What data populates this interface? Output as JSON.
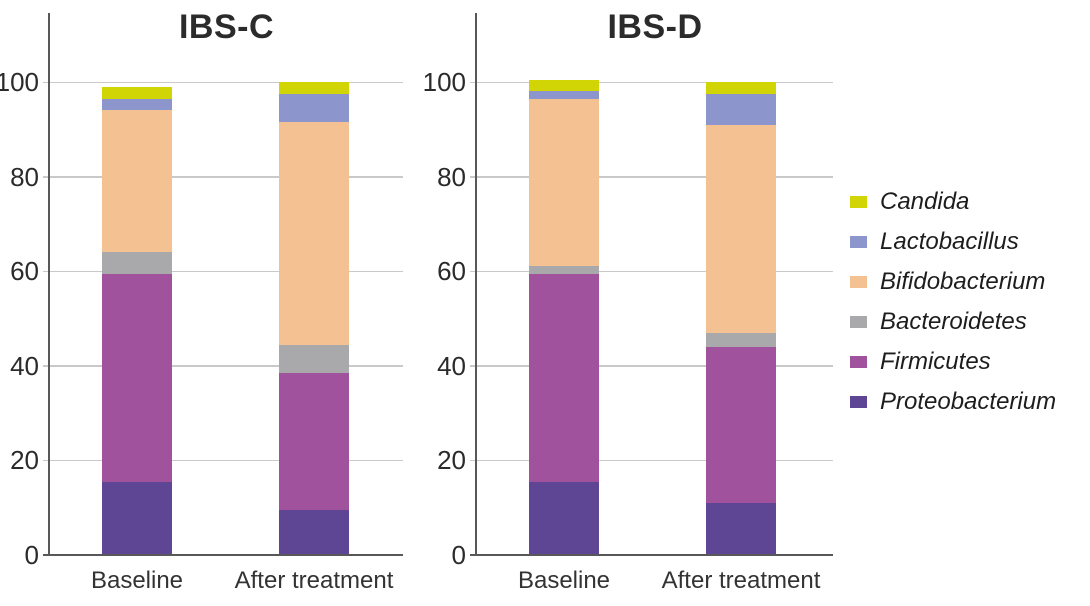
{
  "legend": {
    "position": "right",
    "items": [
      {
        "label": "Candida",
        "color": "#d1d506"
      },
      {
        "label": "Lactobacillus",
        "color": "#8d95cd"
      },
      {
        "label": "Bifidobacterium",
        "color": "#f4c292"
      },
      {
        "label": "Bacteroidetes",
        "color": "#a9a9ab"
      },
      {
        "label": "Firmicutes",
        "color": "#a0529c"
      },
      {
        "label": "Proteobacterium",
        "color": "#5e4695"
      }
    ]
  },
  "chart_data": [
    {
      "type": "bar",
      "stacked": true,
      "title": "IBS-C",
      "categories": [
        "Baseline",
        "After treatment"
      ],
      "series": [
        {
          "name": "Proteobacterium",
          "color": "#5e4695",
          "values": [
            15.5,
            9.5
          ]
        },
        {
          "name": "Firmicutes",
          "color": "#a0529c",
          "values": [
            44,
            29
          ]
        },
        {
          "name": "Bacteroidetes",
          "color": "#a9a9ab",
          "values": [
            4.5,
            6
          ]
        },
        {
          "name": "Bifidobacterium",
          "color": "#f4c292",
          "values": [
            30,
            47
          ]
        },
        {
          "name": "Lactobacillus",
          "color": "#8d95cd",
          "values": [
            2.5,
            6
          ]
        },
        {
          "name": "Candida",
          "color": "#d1d506",
          "values": [
            2.5,
            2.5
          ]
        }
      ],
      "xlabel": "",
      "ylabel": "",
      "ylim": [
        0,
        100
      ],
      "yticks": [
        0,
        20,
        40,
        60,
        80,
        100
      ],
      "grid": true,
      "legend_position": "right"
    },
    {
      "type": "bar",
      "stacked": true,
      "title": "IBS-D",
      "categories": [
        "Baseline",
        "After treatment"
      ],
      "series": [
        {
          "name": "Proteobacterium",
          "color": "#5e4695",
          "values": [
            15.5,
            11
          ]
        },
        {
          "name": "Firmicutes",
          "color": "#a0529c",
          "values": [
            44,
            33
          ]
        },
        {
          "name": "Bacteroidetes",
          "color": "#a9a9ab",
          "values": [
            1.5,
            3
          ]
        },
        {
          "name": "Bifidobacterium",
          "color": "#f4c292",
          "values": [
            35.5,
            44
          ]
        },
        {
          "name": "Lactobacillus",
          "color": "#8d95cd",
          "values": [
            1.5,
            6.5
          ]
        },
        {
          "name": "Candida",
          "color": "#d1d506",
          "values": [
            2.5,
            2.5
          ]
        }
      ],
      "xlabel": "",
      "ylabel": "",
      "ylim": [
        0,
        100
      ],
      "yticks": [
        0,
        20,
        40,
        60,
        80,
        100
      ],
      "grid": true,
      "legend_position": "right"
    }
  ]
}
